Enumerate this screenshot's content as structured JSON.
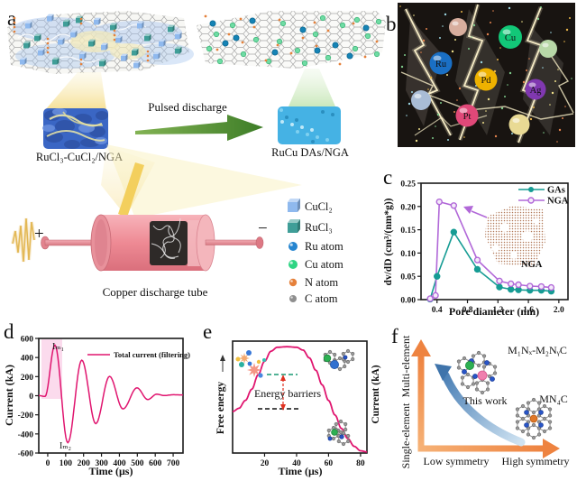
{
  "panel_labels": {
    "a": "a",
    "b": "b",
    "c": "c",
    "d": "d",
    "e": "e",
    "f": "f"
  },
  "colors": {
    "curve_pink": "#e0156f",
    "gas_teal": "#169c94",
    "nga_purple": "#b168d8",
    "arrow_green": "#4f8f2f",
    "arrow_orange": "#ee8340",
    "arrow_blue": "#4a7fb5",
    "beam_yellow": "#f2cc56",
    "tube_pink": "#ef9098"
  },
  "panel_a": {
    "precursor_label": "RuCl₃-CuCl₂/NGA",
    "arrow_label": "Pulsed discharge",
    "product_label": "RuCu DAs/NGA",
    "tube_label": "Copper discharge tube",
    "plus_sign": "+",
    "minus_sign": "−",
    "legend": [
      {
        "label": "CuCl₂",
        "icon": "cube",
        "color": "#8fb9ee"
      },
      {
        "label": "RuCl₃",
        "icon": "cube",
        "color": "#3f9e98"
      },
      {
        "label": "Ru atom",
        "icon": "sphere",
        "color": "#2585d0"
      },
      {
        "label": "Cu atom",
        "icon": "sphere",
        "color": "#2fd584"
      },
      {
        "label": "N atom",
        "icon": "sphere",
        "color": "#e5813b"
      },
      {
        "label": "C atom",
        "icon": "sphere",
        "color": "#8f8f8f"
      }
    ]
  },
  "panel_b": {
    "spheres": [
      {
        "label": "Ru",
        "color": "#1a6fc4"
      },
      {
        "label": "Cu",
        "color": "#12c878"
      },
      {
        "label": "Pd",
        "color": "#eeb200"
      },
      {
        "label": "Ag",
        "color": "#8038b0"
      },
      {
        "label": "Pt",
        "color": "#e04878"
      }
    ],
    "unlabeled_sphere_colors": [
      "#d8ae9e",
      "#b8d8a8",
      "#a9bcd6",
      "#e9da94"
    ]
  },
  "chart_data": [
    {
      "id": "c",
      "type": "line",
      "xlabel": "Pore diameter (nm)",
      "ylabel": "dv/dD (cm³/(nm*g))",
      "xlim": [
        0.19,
        2.12
      ],
      "ylim": [
        0,
        0.25
      ],
      "xticks": [
        "0.4",
        "0.8",
        "1.2",
        "1.6",
        "2.0"
      ],
      "yticks": [
        "0.00",
        "0.05",
        "0.10",
        "0.15",
        "0.20",
        "0.25"
      ],
      "grid": false,
      "legend_position": "top-right",
      "inset_label": "NGA",
      "series": [
        {
          "name": "GAs",
          "color": "#169c94",
          "marker": "filled-circle",
          "points": [
            [
              0.31,
              0.001
            ],
            [
              0.4,
              0.05
            ],
            [
              0.62,
              0.145
            ],
            [
              0.93,
              0.065
            ],
            [
              1.22,
              0.027
            ],
            [
              1.37,
              0.022
            ],
            [
              1.47,
              0.021
            ],
            [
              1.62,
              0.02
            ],
            [
              1.77,
              0.02
            ],
            [
              1.9,
              0.018
            ]
          ]
        },
        {
          "name": "NGA",
          "color": "#b168d8",
          "marker": "open-circle",
          "points": [
            [
              0.31,
              0.002
            ],
            [
              0.38,
              0.009
            ],
            [
              0.43,
              0.21
            ],
            [
              0.62,
              0.202
            ],
            [
              0.93,
              0.085
            ],
            [
              1.22,
              0.04
            ],
            [
              1.37,
              0.034
            ],
            [
              1.47,
              0.032
            ],
            [
              1.62,
              0.029
            ],
            [
              1.77,
              0.028
            ],
            [
              1.9,
              0.026
            ]
          ]
        }
      ]
    },
    {
      "id": "d",
      "type": "line",
      "xlabel": "Time (μs)",
      "ylabel": "Current (kA)",
      "xlim": [
        -50,
        755
      ],
      "ylim": [
        -600,
        600
      ],
      "xticks": [
        "0",
        "100",
        "200",
        "300",
        "400",
        "500",
        "600",
        "700"
      ],
      "yticks": [
        "-600",
        "-400",
        "-200",
        "0",
        "200",
        "400",
        "600"
      ],
      "grid": false,
      "annotations": {
        "peak": "Iₘ₁",
        "trough": "Iₘ₂"
      },
      "series": [
        {
          "name": "Total current (filtering)",
          "color": "#e0156f",
          "interp": "cos",
          "points": [
            [
              -50,
              2
            ],
            [
              -15,
              -8
            ],
            [
              40,
              530
            ],
            [
              112,
              -492
            ],
            [
              190,
              372
            ],
            [
              268,
              -292
            ],
            [
              345,
              202
            ],
            [
              420,
              -138
            ],
            [
              498,
              82
            ],
            [
              558,
              -40
            ],
            [
              608,
              16
            ],
            [
              650,
              2
            ],
            [
              700,
              10
            ],
            [
              755,
              8
            ]
          ]
        }
      ]
    },
    {
      "id": "e",
      "type": "line",
      "xlabel": "Time (μs)",
      "ylabel_left": "Free energy",
      "ylabel_right": "Current (kA)",
      "xlim": [
        0,
        84
      ],
      "ylim": [
        0,
        1
      ],
      "xticks": [
        "20",
        "40",
        "60",
        "80"
      ],
      "grid": false,
      "annotation": "Energy barriers",
      "series": [
        {
          "name": "free energy profile",
          "color": "#e0156f",
          "interp": "cos",
          "points": [
            [
              0,
              0.37
            ],
            [
              4,
              0.4
            ],
            [
              8,
              0.47
            ],
            [
              12,
              0.57
            ],
            [
              16,
              0.7
            ],
            [
              20,
              0.82
            ],
            [
              24,
              0.91
            ],
            [
              28,
              0.945
            ],
            [
              34,
              0.95
            ],
            [
              40,
              0.945
            ],
            [
              44,
              0.92
            ],
            [
              48,
              0.85
            ],
            [
              52,
              0.74
            ],
            [
              56,
              0.61
            ],
            [
              60,
              0.47
            ],
            [
              64,
              0.34
            ],
            [
              68,
              0.22
            ],
            [
              72,
              0.13
            ],
            [
              76,
              0.06
            ],
            [
              80,
              0.02
            ],
            [
              84,
              0.01
            ]
          ]
        }
      ]
    }
  ],
  "panel_f": {
    "y_axis_top": "Multi-element",
    "y_axis_bottom": "Single-element",
    "x_axis_left": "Low symmetry",
    "x_axis_right": "High symmetry",
    "arrow_label": "This work",
    "structure_top": "M₁Nₓ-M₂NᵧC",
    "structure_right": "MN₄C"
  }
}
